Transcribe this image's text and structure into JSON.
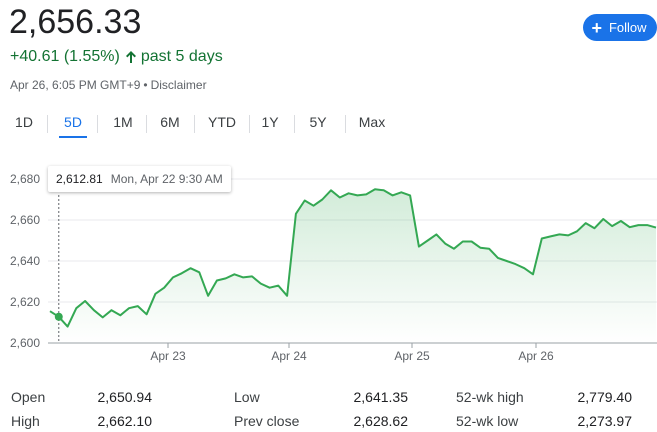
{
  "quote": {
    "price": "2,656.33",
    "change": "+40.61 (1.55%)",
    "period": "past 5 days",
    "timestamp": "Apr 26, 6:05 PM GMT+9",
    "separator": "•",
    "disclaimer": "Disclaimer"
  },
  "follow_button": {
    "label": "Follow",
    "icon": "plus-icon"
  },
  "tabs": [
    {
      "label": "1D",
      "active": false
    },
    {
      "label": "5D",
      "active": true
    },
    {
      "label": "1M",
      "active": false
    },
    {
      "label": "6M",
      "active": false
    },
    {
      "label": "YTD",
      "active": false
    },
    {
      "label": "1Y",
      "active": false
    },
    {
      "label": "5Y",
      "active": false
    },
    {
      "label": "Max",
      "active": false
    }
  ],
  "tooltip": {
    "value": "2,612.81",
    "date": "Mon, Apr 22 9:30 AM"
  },
  "colors": {
    "accent": "#1a73e8",
    "positive": "#137333",
    "line": "#34a853"
  },
  "chart_data": {
    "type": "area",
    "x_ticks": [
      "Apr 23",
      "Apr 24",
      "Apr 25",
      "Apr 26"
    ],
    "y_ticks": [
      "2,680",
      "2,660",
      "2,640",
      "2,620",
      "2,600"
    ],
    "ylim": [
      2600,
      2680
    ],
    "grid": true,
    "series": [
      {
        "values": [
          2615.5,
          2612.8,
          2608,
          2617,
          2620.5,
          2616,
          2612.5,
          2616,
          2613.5,
          2617,
          2618,
          2614,
          2624,
          2627,
          2632,
          2634,
          2636.5,
          2634.5,
          2623,
          2630.5,
          2631.5,
          2633.5,
          2632,
          2632.5,
          2629,
          2627,
          2628,
          2623,
          2663,
          2669.5,
          2667,
          2670,
          2674.5,
          2671,
          2673,
          2672,
          2672.5,
          2675,
          2674.5,
          2672,
          2673.5,
          2672,
          2647,
          2650,
          2653,
          2648.5,
          2646,
          2649.5,
          2649.5,
          2646.5,
          2646,
          2641.5,
          2640,
          2638.5,
          2636.5,
          2633.5,
          2651,
          2652,
          2653,
          2652.5,
          2654.5,
          2658.5,
          2656,
          2660.5,
          2657,
          2659.5,
          2656.5,
          2657.5,
          2657.5,
          2656.3
        ]
      }
    ]
  },
  "stats": [
    {
      "label": "Open",
      "value": "2,650.94"
    },
    {
      "label": "High",
      "value": "2,662.10"
    },
    {
      "label": "Low",
      "value": "2,641.35"
    },
    {
      "label": "Prev close",
      "value": "2,628.62"
    },
    {
      "label": "52-wk high",
      "value": "2,779.40"
    },
    {
      "label": "52-wk low",
      "value": "2,273.97"
    }
  ]
}
